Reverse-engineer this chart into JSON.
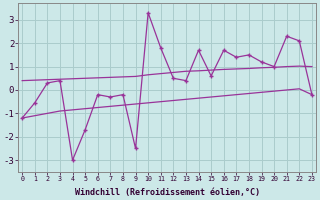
{
  "xlabel": "Windchill (Refroidissement éolien,°C)",
  "hours": [
    0,
    1,
    2,
    3,
    4,
    5,
    6,
    7,
    8,
    9,
    10,
    11,
    12,
    13,
    14,
    15,
    16,
    17,
    18,
    19,
    20,
    21,
    22,
    23
  ],
  "line_slow1": [
    -1.2,
    -1.1,
    -1.0,
    -0.9,
    -0.85,
    -0.8,
    -0.75,
    -0.7,
    -0.65,
    -0.6,
    -0.55,
    -0.5,
    -0.45,
    -0.4,
    -0.35,
    -0.3,
    -0.25,
    -0.2,
    -0.15,
    -0.1,
    -0.05,
    0.0,
    0.05,
    -0.2
  ],
  "line_slow2": [
    0.4,
    0.42,
    0.44,
    0.46,
    0.48,
    0.5,
    0.52,
    0.54,
    0.56,
    0.58,
    0.65,
    0.7,
    0.75,
    0.8,
    0.82,
    0.85,
    0.88,
    0.9,
    0.92,
    0.95,
    0.97,
    1.0,
    1.02,
    1.0
  ],
  "line_jagged": [
    -1.2,
    -0.55,
    0.3,
    0.4,
    -3.0,
    -1.7,
    -0.2,
    -0.3,
    -0.2,
    -2.5,
    3.3,
    1.8,
    0.5,
    0.4,
    1.7,
    0.6,
    1.7,
    1.4,
    1.5,
    1.2,
    1.0,
    2.3,
    2.1,
    -0.2
  ],
  "bg_color": "#cce8e8",
  "grid_color": "#aacccc",
  "line_color": "#993399",
  "marker_color": "#993399",
  "ylim": [
    -3.5,
    3.7
  ],
  "yticks": [
    -3,
    -2,
    -1,
    0,
    1,
    2,
    3
  ],
  "xticks": [
    0,
    1,
    2,
    3,
    4,
    5,
    6,
    7,
    8,
    9,
    10,
    11,
    12,
    13,
    14,
    15,
    16,
    17,
    18,
    19,
    20,
    21,
    22,
    23
  ]
}
